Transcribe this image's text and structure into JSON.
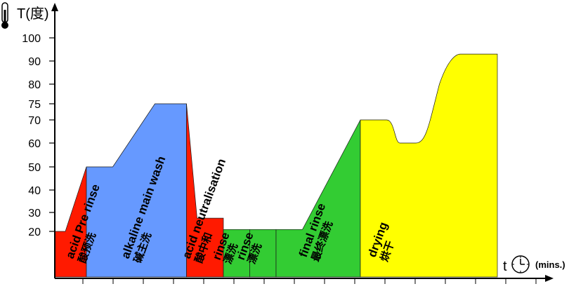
{
  "chart_data": {
    "type": "area",
    "title": "",
    "ylabel": "T(度)",
    "xlabel": "t",
    "x_unit": "(mins.)",
    "y_ticks": [
      20,
      30,
      40,
      50,
      60,
      70,
      75,
      80,
      90,
      100
    ],
    "ylim": [
      0,
      100
    ],
    "grid": false,
    "legend": "none",
    "profile_points": [
      [
        0,
        20
      ],
      [
        2,
        20
      ],
      [
        6,
        50
      ],
      [
        11,
        50
      ],
      [
        19,
        75
      ],
      [
        25,
        75
      ],
      [
        27,
        27
      ],
      [
        32,
        27
      ],
      [
        32,
        21
      ],
      [
        47,
        21
      ],
      [
        58,
        70
      ],
      [
        63,
        70
      ],
      [
        65,
        60
      ],
      [
        71,
        60
      ],
      [
        78,
        93
      ],
      [
        84,
        93
      ]
    ],
    "phases": [
      {
        "key": "acid_pre",
        "label": "acid Pre rinse",
        "sublabel": "酸预洗",
        "color": "#ff1a00",
        "points": [
          [
            0,
            0
          ],
          [
            0,
            20
          ],
          [
            2,
            20
          ],
          [
            6,
            50
          ],
          [
            6,
            0
          ]
        ]
      },
      {
        "key": "alk_main",
        "label": "alkaline main wash",
        "sublabel": "碱主洗",
        "color": "#6699ff",
        "points": [
          [
            6,
            0
          ],
          [
            6,
            50
          ],
          [
            11,
            50
          ],
          [
            19,
            75
          ],
          [
            25,
            75
          ],
          [
            25,
            0
          ]
        ]
      },
      {
        "key": "acid_neut",
        "label": "acid neutralisation",
        "sublabel": "酸中和",
        "color": "#ff1a00",
        "points": [
          [
            25,
            0
          ],
          [
            25,
            75
          ],
          [
            27,
            27
          ],
          [
            32,
            27
          ],
          [
            32,
            0
          ]
        ]
      },
      {
        "key": "rinse1",
        "label": "rinse",
        "sublabel": "漂洗",
        "color": "#33cc33",
        "points": [
          [
            32,
            0
          ],
          [
            32,
            21
          ],
          [
            37,
            21
          ],
          [
            37,
            0
          ]
        ]
      },
      {
        "key": "rinse2",
        "label": "rinse",
        "sublabel": "漂洗",
        "color": "#33cc33",
        "points": [
          [
            37,
            0
          ],
          [
            37,
            21
          ],
          [
            42,
            21
          ],
          [
            42,
            0
          ]
        ]
      },
      {
        "key": "final_rinse",
        "label": "final rinse",
        "sublabel": "最终漂洗",
        "color": "#33cc33",
        "points": [
          [
            42,
            0
          ],
          [
            42,
            21
          ],
          [
            47,
            21
          ],
          [
            58,
            70
          ],
          [
            58,
            0
          ]
        ]
      },
      {
        "key": "drying",
        "label": "drying",
        "sublabel": "烘干",
        "color": "#ffff00",
        "points": [
          [
            58,
            0
          ],
          [
            58,
            70
          ],
          [
            63,
            70
          ],
          [
            65,
            60
          ],
          [
            71,
            60
          ],
          [
            78,
            93
          ],
          [
            78,
            0
          ]
        ]
      }
    ]
  }
}
